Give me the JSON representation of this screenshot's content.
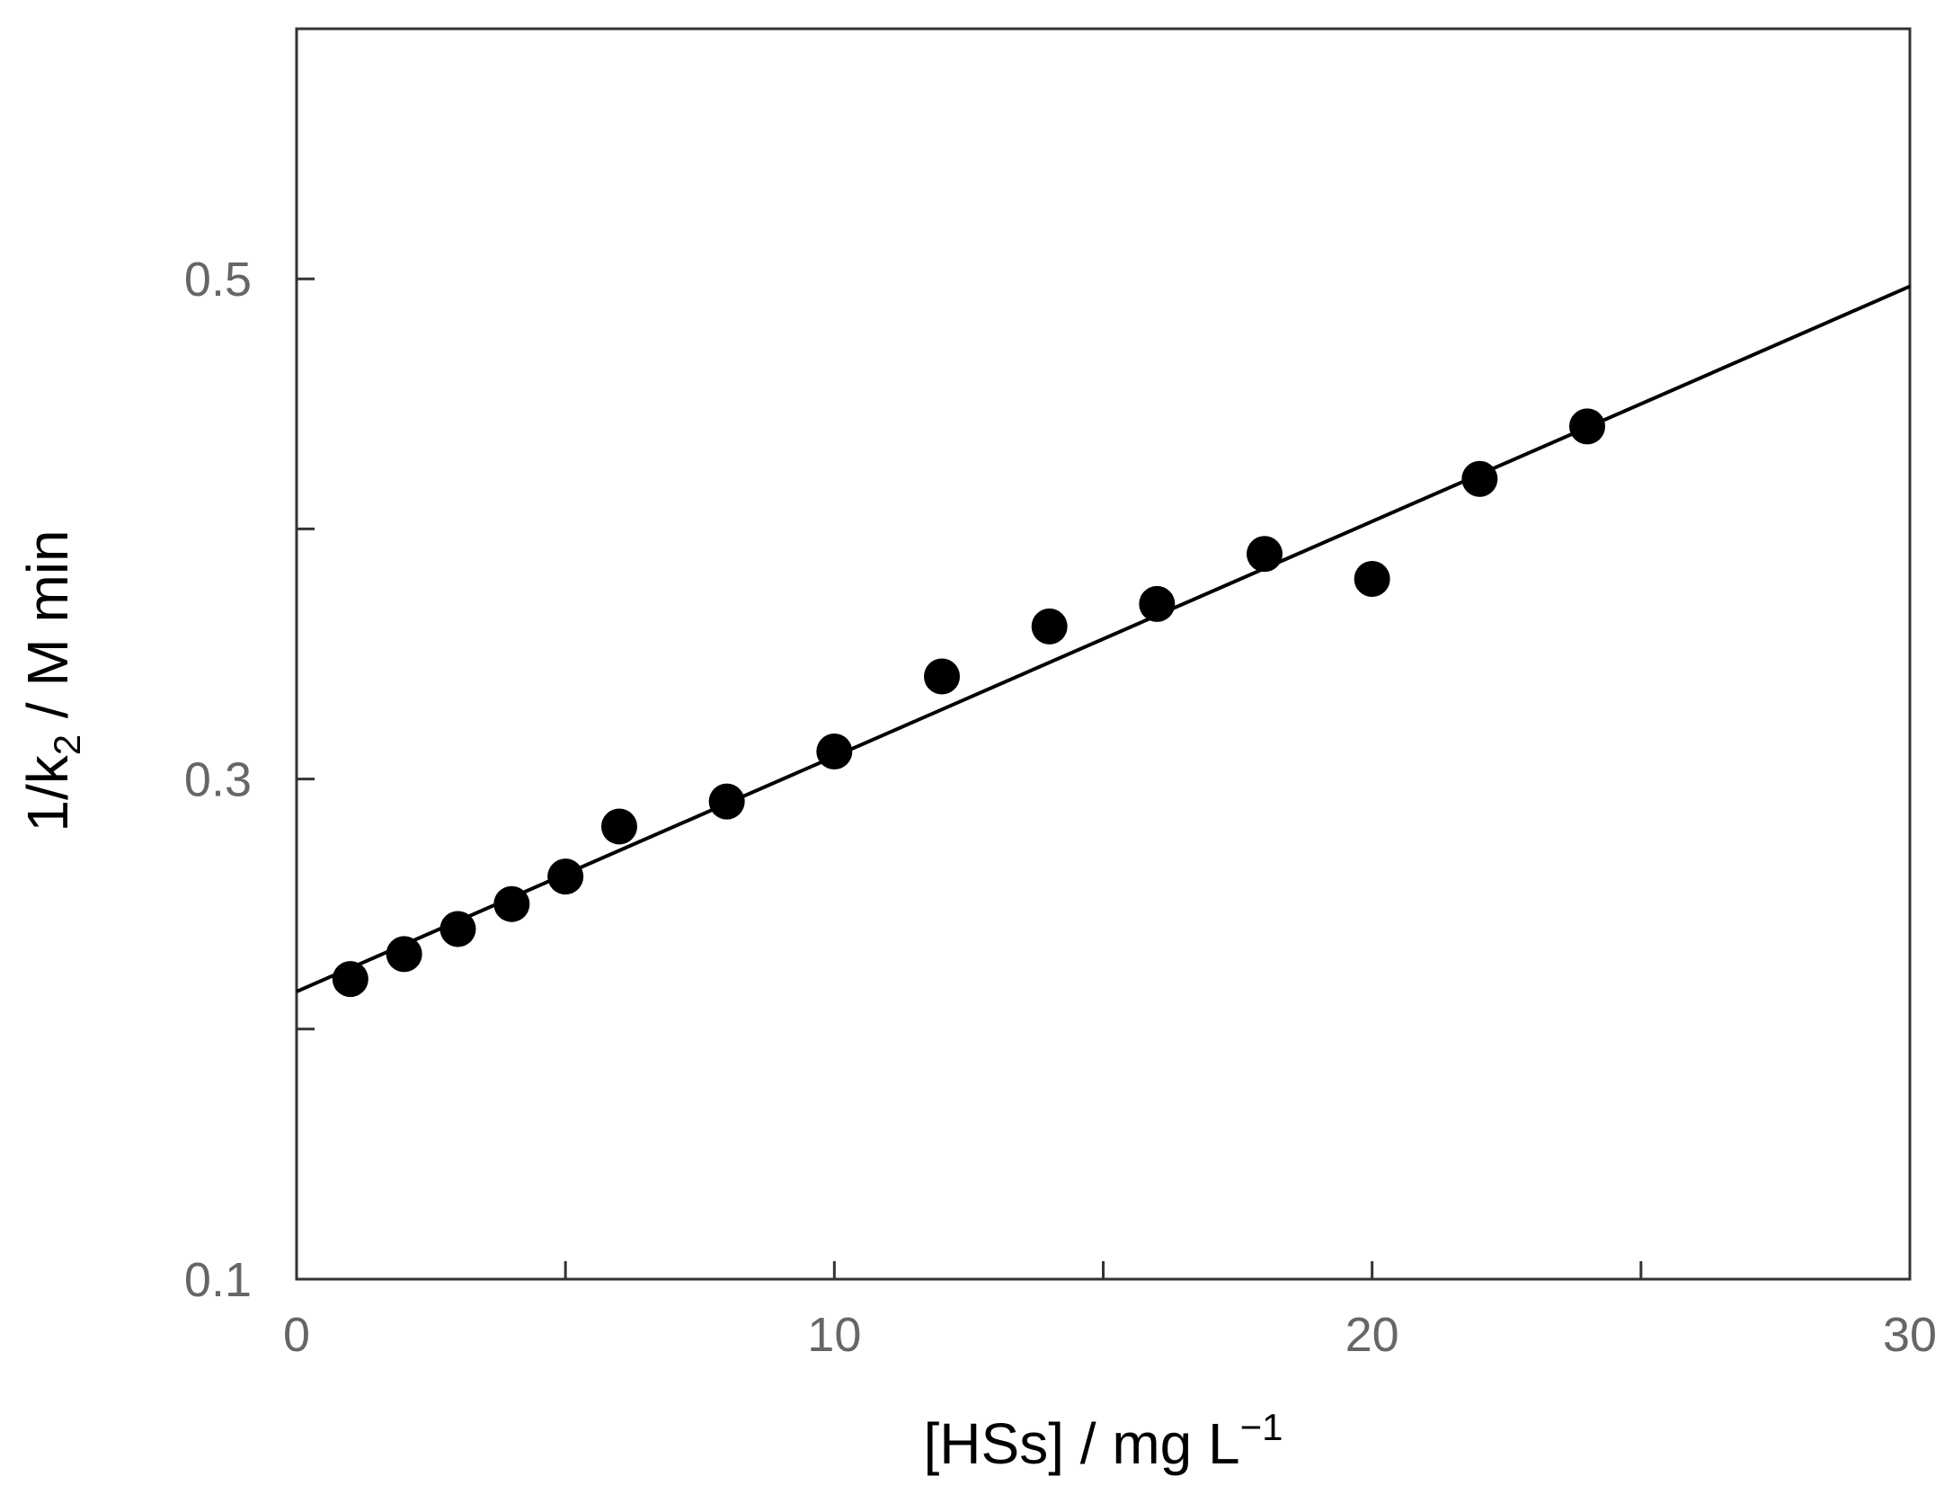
{
  "chart_data": {
    "type": "scatter",
    "title": "",
    "xlabel": {
      "main": "[HSs]  / mg L",
      "superscript": "−1"
    },
    "ylabel": {
      "prefix": "1/k",
      "subscript": "2",
      "suffix": " / M min"
    },
    "xlim": [
      0,
      30
    ],
    "ylim": [
      0.1,
      0.6
    ],
    "x_ticks": [
      0,
      5,
      10,
      15,
      20,
      25,
      30
    ],
    "x_tick_labels": [
      {
        "value": 0,
        "label": "0"
      },
      {
        "value": 10,
        "label": "10"
      },
      {
        "value": 20,
        "label": "20"
      },
      {
        "value": 30,
        "label": "30"
      }
    ],
    "y_ticks": [
      0.1,
      0.2,
      0.3,
      0.4,
      0.5
    ],
    "y_tick_labels": [
      {
        "value": 0.1,
        "label": "0.1"
      },
      {
        "value": 0.3,
        "label": "0.3"
      },
      {
        "value": 0.5,
        "label": "0.5"
      }
    ],
    "grid": false,
    "legend": "none",
    "colors": {
      "points": "#000000",
      "fit_line": "#000000",
      "axes": "#333333",
      "tick_labels": "#666666"
    },
    "series": [
      {
        "kind": "points",
        "x": [
          1,
          2,
          3,
          4,
          5,
          6,
          8,
          10,
          12,
          14,
          16,
          18,
          20,
          22,
          24
        ],
        "y": [
          0.22,
          0.23,
          0.24,
          0.25,
          0.261,
          0.281,
          0.291,
          0.311,
          0.341,
          0.361,
          0.37,
          0.39,
          0.38,
          0.42,
          0.441
        ]
      },
      {
        "kind": "fit-line",
        "x": [
          0,
          30
        ],
        "y": [
          0.215,
          0.497
        ]
      }
    ]
  }
}
